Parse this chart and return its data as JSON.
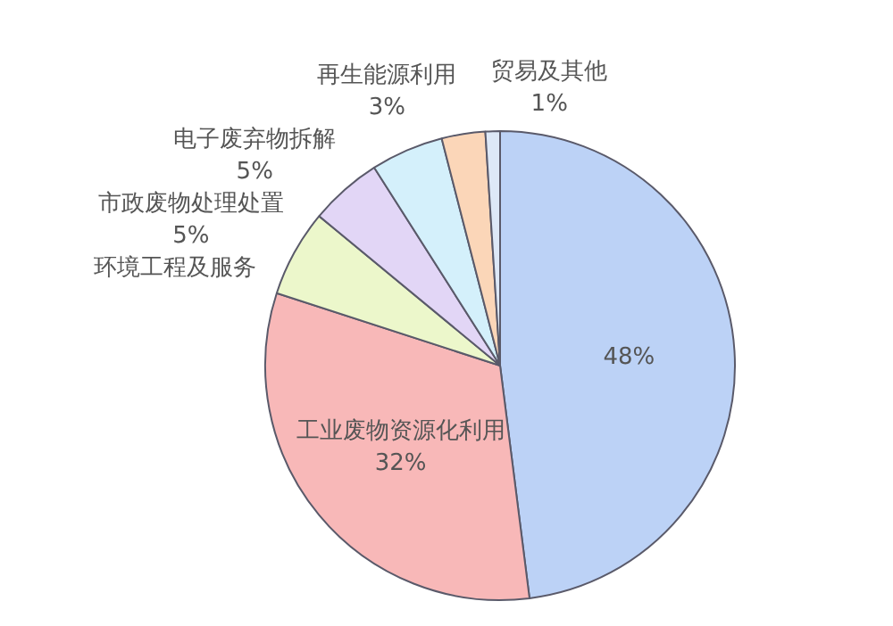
{
  "chart_data": {
    "type": "pie",
    "categories": [
      null,
      "工业废物资源化利用",
      "环境工程及服务",
      "市政废物处理处置",
      "电子废弃物拆解",
      "再生能源利用",
      "贸易及其他"
    ],
    "values": [
      48,
      32,
      6,
      5,
      5,
      3,
      1
    ],
    "colors": [
      "#bcd2f6",
      "#f8b8b8",
      "#ecf7cb",
      "#e2d6f6",
      "#d4f0fb",
      "#fbd6b8",
      "#dde8f7"
    ],
    "value_labels": [
      "48%",
      "32%",
      null,
      "5%",
      "5%",
      "3%",
      "1%"
    ],
    "legend": false
  }
}
